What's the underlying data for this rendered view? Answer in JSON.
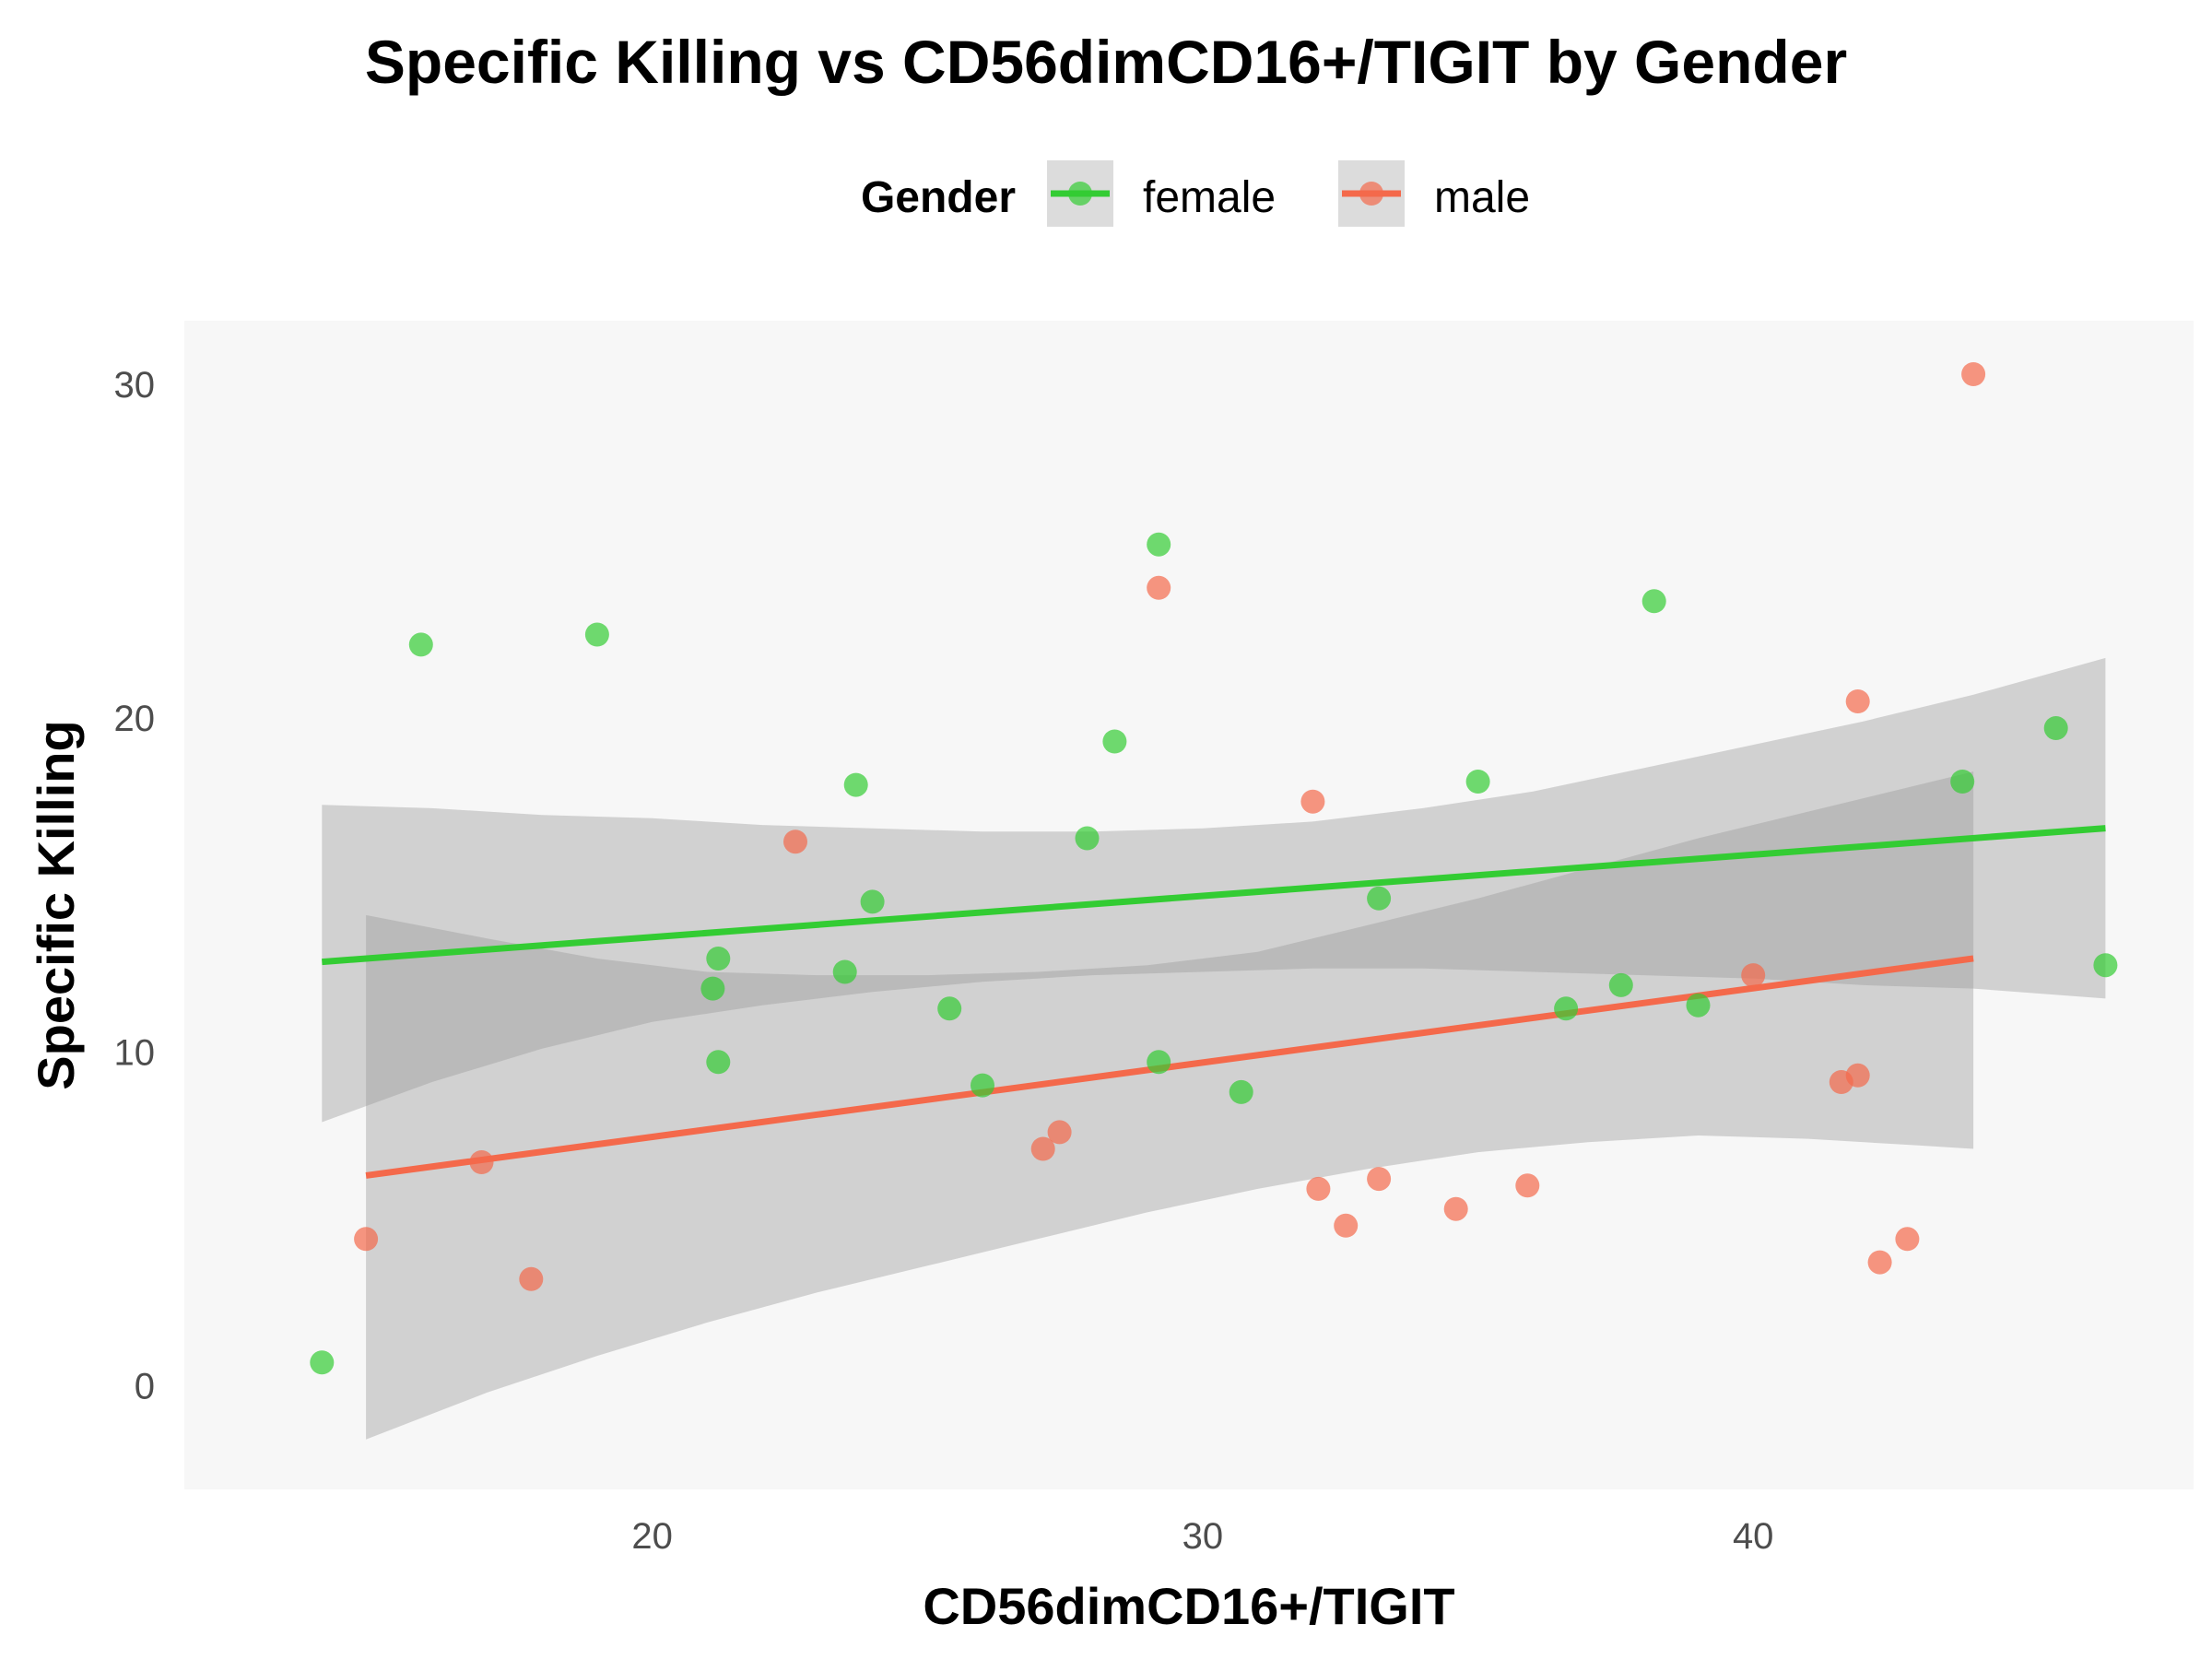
{
  "chart_data": {
    "type": "scatter",
    "title": "Specific Killing vs CD56dimCD16+/TIGIT by Gender",
    "xlabel": "CD56dimCD16+/TIGIT",
    "ylabel": "Specific Killing",
    "xlim": [
      11.5,
      48.0
    ],
    "ylim": [
      -3.1,
      31.9
    ],
    "x_ticks": [
      20,
      30,
      40
    ],
    "y_ticks": [
      0,
      10,
      20,
      30
    ],
    "grid": false,
    "legend": {
      "title": "Gender",
      "placement": "top"
    },
    "series": [
      {
        "name": "female",
        "color": "#33cc33",
        "points": [
          [
            14.0,
            0.7
          ],
          [
            15.8,
            22.2
          ],
          [
            19.0,
            22.5
          ],
          [
            21.1,
            11.9
          ],
          [
            21.2,
            12.8
          ],
          [
            21.2,
            9.7
          ],
          [
            23.5,
            12.4
          ],
          [
            23.7,
            18.0
          ],
          [
            24.0,
            14.5
          ],
          [
            25.4,
            11.3
          ],
          [
            26.0,
            9.0
          ],
          [
            27.9,
            16.4
          ],
          [
            28.4,
            19.3
          ],
          [
            29.2,
            25.2
          ],
          [
            29.2,
            9.7
          ],
          [
            30.7,
            8.8
          ],
          [
            33.2,
            14.6
          ],
          [
            35.0,
            18.1
          ],
          [
            36.6,
            11.3
          ],
          [
            37.6,
            12.0
          ],
          [
            38.2,
            23.5
          ],
          [
            39.0,
            11.4
          ],
          [
            43.8,
            18.1
          ],
          [
            45.5,
            19.7
          ],
          [
            46.4,
            12.6
          ]
        ],
        "fit": {
          "x": [
            14.0,
            46.4
          ],
          "y": [
            12.7,
            16.7
          ]
        },
        "ci": {
          "x": [
            14.0,
            16.0,
            18.0,
            20.0,
            22.0,
            24.0,
            26.0,
            28.0,
            30.0,
            32.0,
            34.0,
            36.0,
            38.0,
            40.0,
            42.0,
            44.0,
            46.4
          ],
          "lower": [
            7.9,
            9.1,
            10.1,
            10.9,
            11.4,
            11.8,
            12.1,
            12.3,
            12.4,
            12.5,
            12.5,
            12.4,
            12.3,
            12.2,
            12.0,
            11.9,
            11.6
          ],
          "upper": [
            17.4,
            17.3,
            17.1,
            17.0,
            16.8,
            16.7,
            16.6,
            16.6,
            16.7,
            16.9,
            17.3,
            17.8,
            18.5,
            19.2,
            19.9,
            20.7,
            21.8
          ]
        }
      },
      {
        "name": "male",
        "color": "#f4694b",
        "points": [
          [
            14.8,
            4.4
          ],
          [
            16.9,
            6.7
          ],
          [
            17.8,
            3.2
          ],
          [
            22.6,
            16.3
          ],
          [
            27.1,
            7.1
          ],
          [
            27.4,
            7.6
          ],
          [
            29.2,
            23.9
          ],
          [
            32.0,
            17.5
          ],
          [
            32.1,
            5.9
          ],
          [
            32.6,
            4.8
          ],
          [
            33.2,
            6.2
          ],
          [
            34.6,
            5.3
          ],
          [
            35.9,
            6.0
          ],
          [
            40.0,
            12.3
          ],
          [
            41.6,
            9.1
          ],
          [
            41.9,
            20.5
          ],
          [
            41.9,
            9.3
          ],
          [
            42.3,
            3.7
          ],
          [
            42.8,
            4.4
          ],
          [
            44.0,
            30.3
          ]
        ],
        "fit": {
          "x": [
            14.8,
            44.0
          ],
          "y": [
            6.3,
            12.8
          ]
        },
        "ci": {
          "x": [
            14.8,
            17.0,
            19.0,
            21.0,
            23.0,
            25.0,
            27.0,
            29.0,
            31.0,
            33.0,
            35.0,
            37.0,
            39.0,
            41.0,
            43.0,
            44.0
          ],
          "lower": [
            -1.6,
            -0.2,
            0.9,
            1.9,
            2.8,
            3.6,
            4.4,
            5.2,
            5.9,
            6.5,
            7.0,
            7.3,
            7.5,
            7.4,
            7.2,
            7.1
          ],
          "upper": [
            14.1,
            13.4,
            12.8,
            12.4,
            12.3,
            12.3,
            12.4,
            12.6,
            13.0,
            13.8,
            14.6,
            15.5,
            16.4,
            17.2,
            18.0,
            18.4
          ]
        }
      }
    ],
    "ci_color": "#999999",
    "panel_background": "#f7f7f7"
  }
}
